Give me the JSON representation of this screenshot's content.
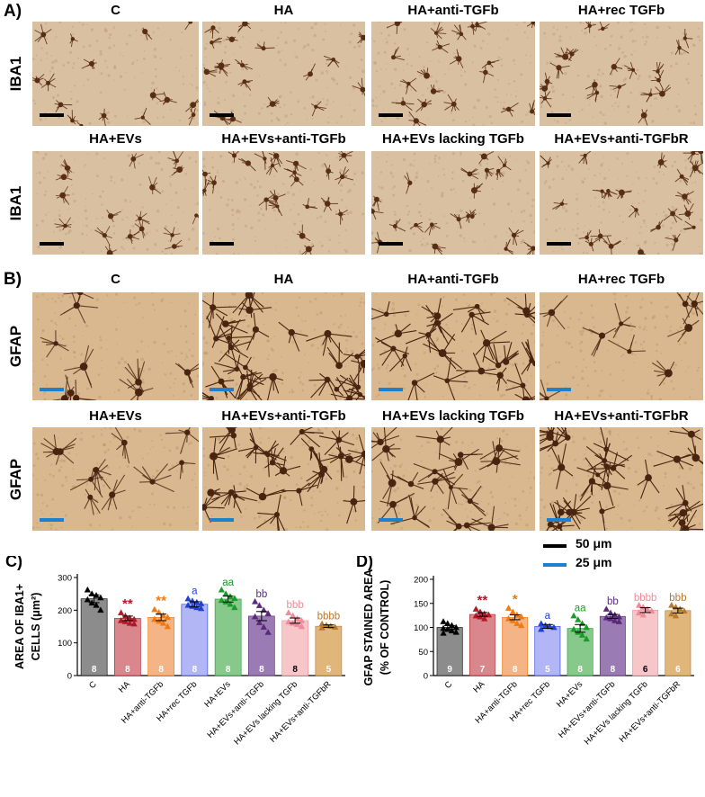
{
  "colors": {
    "iba1_bg": "#d8c0a0",
    "iba1_cell": "#5a2e14",
    "gfap_bg": "#d9b88f",
    "gfap_fiber": "#4a2410",
    "scale_black": "#000000",
    "scale_blue": "#1f7fcf"
  },
  "panel_a": {
    "letter": "A)",
    "row_label": "IBA1",
    "row1_titles": [
      "C",
      "HA",
      "HA+anti-TGFb",
      "HA+rec TGFb"
    ],
    "row2_titles": [
      "HA+EVs",
      "HA+EVs+anti-TGFb",
      "HA+EVs lacking TGFb",
      "HA+EVs+anti-TGFbR"
    ]
  },
  "panel_b": {
    "letter": "B)",
    "row_label": "GFAP",
    "row1_titles": [
      "C",
      "HA",
      "HA+anti-TGFb",
      "HA+rec TGFb"
    ],
    "row2_titles": [
      "HA+EVs",
      "HA+EVs+anti-TGFb",
      "HA+EVs lacking TGFb",
      "HA+EVs+anti-TGFbR"
    ]
  },
  "scale_legend": {
    "black_label": "50 μm",
    "blue_label": "25 μm"
  },
  "chart_data": [
    {
      "type": "bar",
      "panel": "C)",
      "ylabel_line1": "AREA OF IBA1+",
      "ylabel_line2": "CELLS (μm²)",
      "ylim": [
        0,
        300
      ],
      "yticks": [
        0,
        100,
        200,
        300
      ],
      "categories": [
        "C",
        "HA",
        "HA+anti-TGFb",
        "HA+rec TGFb",
        "HA+EVs",
        "HA+EVs+anti-TGFb",
        "HA+EVs lacking TGFb",
        "HA+EVs+anti-TGFbR"
      ],
      "values": [
        235,
        175,
        178,
        218,
        234,
        182,
        168,
        151
      ],
      "errors": [
        12,
        7,
        10,
        8,
        9,
        14,
        8,
        4
      ],
      "n": [
        "8",
        "8",
        "8",
        "8",
        "8",
        "8",
        "8",
        "5"
      ],
      "annotations": [
        "",
        "**",
        "**",
        "a",
        "aa",
        "bb",
        "bbb",
        "bbbb"
      ],
      "bar_colors": [
        "#8c8c8c",
        "#d9878c",
        "#f4b486",
        "#b3b6f5",
        "#86c98a",
        "#9b7bb4",
        "#f7c6c9",
        "#e0b67a"
      ],
      "point_colors": [
        "#000000",
        "#b01a26",
        "#f07a10",
        "#1f3fd8",
        "#1a9a2a",
        "#5a2a7a",
        "#f08a98",
        "#b8782e"
      ],
      "points": [
        [
          262,
          250,
          245,
          238,
          232,
          222,
          215,
          200
        ],
        [
          192,
          182,
          176,
          172,
          168,
          165,
          160,
          158
        ],
        [
          202,
          193,
          184,
          178,
          172,
          166,
          160,
          150
        ],
        [
          235,
          228,
          224,
          220,
          215,
          212,
          208,
          205
        ],
        [
          262,
          250,
          242,
          236,
          230,
          225,
          218,
          208
        ],
        [
          226,
          214,
          200,
          190,
          180,
          162,
          148,
          132
        ],
        [
          192,
          183,
          174,
          168,
          164,
          160,
          156,
          150
        ],
        [
          158,
          154,
          151,
          148,
          146
        ]
      ]
    },
    {
      "type": "bar",
      "panel": "D)",
      "ylabel_line1": "GFAP STAINED AREA",
      "ylabel_line2": "(% OF CONTROL)",
      "ylim": [
        0,
        200
      ],
      "yticks": [
        0,
        50,
        100,
        150,
        200
      ],
      "categories": [
        "C",
        "HA",
        "HA+anti-TGFb",
        "HA+rec TGFb",
        "HA+EVs",
        "HA+EVs+anti-TGFb",
        "HA+EVs lacking TGFb",
        "HA+EVs+anti-TGFbR"
      ],
      "values": [
        100,
        127,
        121,
        102,
        98,
        123,
        136,
        135
      ],
      "errors": [
        4,
        4,
        5,
        4,
        8,
        4,
        5,
        5
      ],
      "n": [
        "9",
        "7",
        "8",
        "5",
        "8",
        "8",
        "6",
        "6"
      ],
      "annotations": [
        "",
        "**",
        "*",
        "a",
        "aa",
        "bb",
        "bbbb",
        "bbb"
      ],
      "bar_colors": [
        "#8c8c8c",
        "#d9878c",
        "#f4b486",
        "#b3b6f5",
        "#86c98a",
        "#9b7bb4",
        "#f7c6c9",
        "#e0b67a"
      ],
      "point_colors": [
        "#000000",
        "#b01a26",
        "#f07a10",
        "#1f3fd8",
        "#1a9a2a",
        "#5a2a7a",
        "#f08a98",
        "#b8782e"
      ],
      "points": [
        [
          112,
          108,
          104,
          100,
          98,
          96,
          93,
          90,
          88
        ],
        [
          138,
          132,
          128,
          126,
          124,
          122,
          118
        ],
        [
          140,
          132,
          126,
          122,
          118,
          114,
          108,
          104
        ],
        [
          108,
          104,
          102,
          100,
          96
        ],
        [
          124,
          116,
          108,
          100,
          96,
          90,
          84,
          76
        ],
        [
          138,
          130,
          126,
          122,
          120,
          118,
          114,
          112
        ],
        [
          146,
          142,
          138,
          134,
          130,
          126
        ],
        [
          146,
          142,
          138,
          134,
          128,
          124
        ]
      ]
    }
  ]
}
